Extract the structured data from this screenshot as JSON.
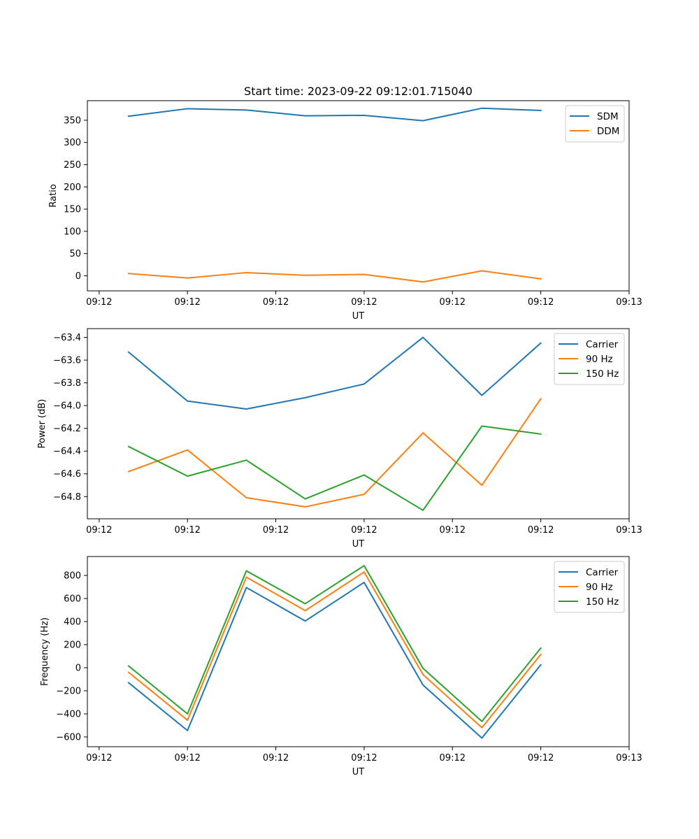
{
  "chart_data": [
    {
      "type": "line",
      "title": "Start time: 2023-09-22 09:12:01.715040",
      "xlabel": "UT",
      "ylabel": "Ratio",
      "xlim": [
        -0.2,
        9.0
      ],
      "ylim": [
        -34,
        394
      ],
      "x": [
        0.5,
        1.5,
        2.5,
        3.5,
        4.5,
        5.5,
        6.5,
        7.5
      ],
      "x_ticks": [
        0,
        1.5,
        3,
        4.5,
        6,
        7.5,
        9
      ],
      "x_tick_labels": [
        "09:12",
        "09:12",
        "09:12",
        "09:12",
        "09:12",
        "09:12",
        "09:13"
      ],
      "y_ticks": [
        0,
        50,
        100,
        150,
        200,
        250,
        300,
        350
      ],
      "y_tick_labels": [
        "0",
        "50",
        "100",
        "150",
        "200",
        "250",
        "300",
        "350"
      ],
      "legend": "top-right",
      "series": [
        {
          "name": "SDM",
          "color": "#1f77b4",
          "values": [
            359,
            376,
            373,
            360,
            361,
            349,
            377,
            372
          ]
        },
        {
          "name": "DDM",
          "color": "#ff7f0e",
          "values": [
            5,
            -5,
            7,
            1,
            3,
            -14,
            11,
            -7
          ]
        }
      ]
    },
    {
      "type": "line",
      "title": "",
      "xlabel": "UT",
      "ylabel": "Power (dB)",
      "xlim": [
        -0.2,
        9.0
      ],
      "ylim": [
        -64.995,
        -63.323
      ],
      "x": [
        0.5,
        1.5,
        2.5,
        3.5,
        4.5,
        5.5,
        6.5,
        7.5
      ],
      "x_ticks": [
        0,
        1.5,
        3,
        4.5,
        6,
        7.5,
        9
      ],
      "x_tick_labels": [
        "09:12",
        "09:12",
        "09:12",
        "09:12",
        "09:12",
        "09:12",
        "09:13"
      ],
      "y_ticks": [
        -64.8,
        -64.6,
        -64.4,
        -64.2,
        -64.0,
        -63.8,
        -63.6,
        -63.4
      ],
      "y_tick_labels": [
        "−64.8",
        "−64.6",
        "−64.4",
        "−64.2",
        "−64.0",
        "−63.8",
        "−63.6",
        "−63.4"
      ],
      "legend": "top-right",
      "series": [
        {
          "name": "Carrier",
          "color": "#1f77b4",
          "values": [
            -63.53,
            -63.96,
            -64.03,
            -63.93,
            -63.81,
            -63.4,
            -63.91,
            -63.45
          ]
        },
        {
          "name": "90 Hz",
          "color": "#ff7f0e",
          "values": [
            -64.58,
            -64.39,
            -64.81,
            -64.89,
            -64.78,
            -64.24,
            -64.7,
            -63.94
          ]
        },
        {
          "name": "150 Hz",
          "color": "#2ca02c",
          "values": [
            -64.36,
            -64.62,
            -64.48,
            -64.82,
            -64.61,
            -64.92,
            -64.18,
            -64.25
          ]
        }
      ]
    },
    {
      "type": "line",
      "title": "",
      "xlabel": "UT",
      "ylabel": "Frequency (Hz)",
      "xlim": [
        -0.2,
        9.0
      ],
      "ylim": [
        -685,
        964
      ],
      "x": [
        0.5,
        1.5,
        2.5,
        3.5,
        4.5,
        5.5,
        6.5,
        7.5
      ],
      "x_ticks": [
        0,
        1.5,
        3,
        4.5,
        6,
        7.5,
        9
      ],
      "x_tick_labels": [
        "09:12",
        "09:12",
        "09:12",
        "09:12",
        "09:12",
        "09:12",
        "09:13"
      ],
      "y_ticks": [
        -600,
        -400,
        -200,
        0,
        200,
        400,
        600,
        800
      ],
      "y_tick_labels": [
        "−600",
        "−400",
        "−200",
        "0",
        "200",
        "400",
        "600",
        "800"
      ],
      "legend": "top-right",
      "series": [
        {
          "name": "Carrier",
          "color": "#1f77b4",
          "values": [
            -130,
            -545,
            695,
            405,
            740,
            -150,
            -610,
            25
          ]
        },
        {
          "name": "90 Hz",
          "color": "#ff7f0e",
          "values": [
            -40,
            -455,
            785,
            495,
            830,
            -60,
            -520,
            115
          ]
        },
        {
          "name": "150 Hz",
          "color": "#2ca02c",
          "values": [
            15,
            -400,
            840,
            555,
            885,
            -5,
            -465,
            170
          ]
        }
      ]
    }
  ]
}
